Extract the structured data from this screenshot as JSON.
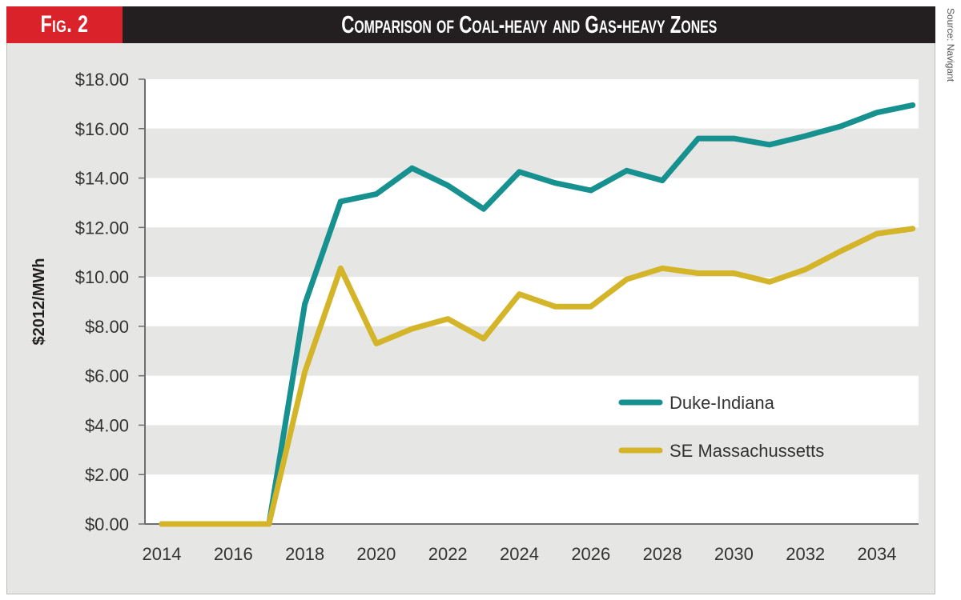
{
  "header": {
    "fig_label": "Fig. 2",
    "title": "Comparison of Coal-heavy and Gas-heavy Zones",
    "source": "Source: Navigant"
  },
  "colors": {
    "header_bg": "#231f20",
    "badge_bg": "#d9222a",
    "panel_bg": "#e6e7e5",
    "band_white": "#ffffff",
    "band_grey": "#e6e7e5",
    "duke_indiana": "#17918f",
    "se_massachussetts": "#d4b52a"
  },
  "chart_data": {
    "type": "line",
    "title": "Comparison of Coal-heavy and Gas-heavy Zones",
    "xlabel": "",
    "ylabel": "$2012/MWh",
    "x": [
      2014,
      2015,
      2016,
      2017,
      2018,
      2019,
      2020,
      2021,
      2022,
      2023,
      2024,
      2025,
      2026,
      2027,
      2028,
      2029,
      2030,
      2031,
      2032,
      2033,
      2034,
      2035
    ],
    "xlim": [
      2013.5,
      2035.5
    ],
    "ylim": [
      0,
      18
    ],
    "x_ticks": [
      2014,
      2016,
      2018,
      2020,
      2022,
      2024,
      2026,
      2028,
      2030,
      2032,
      2034
    ],
    "x_tick_labels": [
      "2014",
      "2016",
      "2018",
      "2020",
      "2022",
      "2024",
      "2026",
      "2028",
      "2030",
      "2032",
      "2034"
    ],
    "y_ticks": [
      0,
      2,
      4,
      6,
      8,
      10,
      12,
      14,
      16,
      18
    ],
    "y_tick_labels": [
      "$0.00",
      "$2.00",
      "$4.00",
      "$6.00",
      "$8.00",
      "$10.00",
      "$12.00",
      "$14.00",
      "$16.00",
      "$18.00"
    ],
    "grid": "alternating horizontal bands",
    "legend_position": "lower-right",
    "series": [
      {
        "name": "Duke-Indiana",
        "color": "#17918f",
        "values": [
          0,
          0,
          0,
          0,
          8.9,
          13.05,
          13.35,
          14.4,
          13.7,
          12.75,
          14.25,
          13.8,
          13.5,
          14.3,
          13.9,
          15.6,
          15.6,
          15.35,
          15.7,
          16.1,
          16.65,
          16.95
        ]
      },
      {
        "name": "SE Massachussetts",
        "color": "#d4b52a",
        "values": [
          0,
          0,
          0,
          0,
          6.15,
          10.35,
          7.3,
          7.9,
          8.3,
          7.5,
          9.3,
          8.8,
          8.8,
          9.9,
          10.35,
          10.15,
          10.15,
          9.8,
          10.3,
          11.05,
          11.75,
          11.95
        ]
      }
    ]
  }
}
